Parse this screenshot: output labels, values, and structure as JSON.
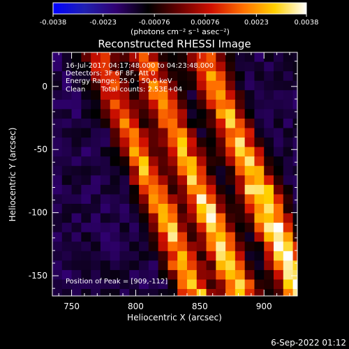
{
  "chart_data": {
    "type": "heatmap",
    "title": "Reconstructed RHESSI Image",
    "xlabel": "Heliocentric X (arcsec)",
    "ylabel": "Heliocentric Y (arcsec)",
    "xlim": [
      735,
      926
    ],
    "ylim": [
      -166,
      27
    ],
    "x_ticks": [
      750,
      800,
      850,
      900
    ],
    "y_ticks": [
      0,
      -50,
      -100,
      -150
    ],
    "colorbar": {
      "min": -0.0038,
      "max": 0.0038,
      "ticks": [
        -0.0038,
        -0.0023,
        -0.00076,
        0.00076,
        0.0023,
        0.0038
      ],
      "tick_labels": [
        "-0.0038",
        "-0.0023",
        "-0.00076",
        "0.00076",
        "0.0023",
        "0.0038"
      ],
      "unit_label": "(photons cm⁻² s⁻¹ asec⁻²)",
      "colormap": [
        "#0000ff",
        "#2020b0",
        "#300070",
        "#000000",
        "#6a0000",
        "#d01000",
        "#ff7000",
        "#ffd000",
        "#ffffff"
      ]
    },
    "annotations": {
      "time_range": "16-Jul-2017 04:17:48.000 to 04:23:48.000",
      "detectors": "Detectors: 3F 6F 8F, Att 0",
      "energy": "Energy Range: 25.0 - 50.0 keV",
      "method": "Clean",
      "total_counts": "Total counts: 2.53E+04",
      "peak": "Position of Peak = [909,-112]"
    },
    "peak": [
      909,
      -112
    ],
    "bands": [
      {
        "x_at_top": 770,
        "slope_x_per_y": 0.4,
        "width": 12,
        "intensity": 0.0028
      },
      {
        "x_at_top": 805,
        "slope_x_per_y": 0.4,
        "width": 13,
        "intensity": 0.0032
      },
      {
        "x_at_top": 852,
        "slope_x_per_y": 0.4,
        "width": 14,
        "intensity": 0.0036
      }
    ],
    "background_intensity": -0.0015
  },
  "footer": {
    "date": "6-Sep-2022 01:12"
  }
}
